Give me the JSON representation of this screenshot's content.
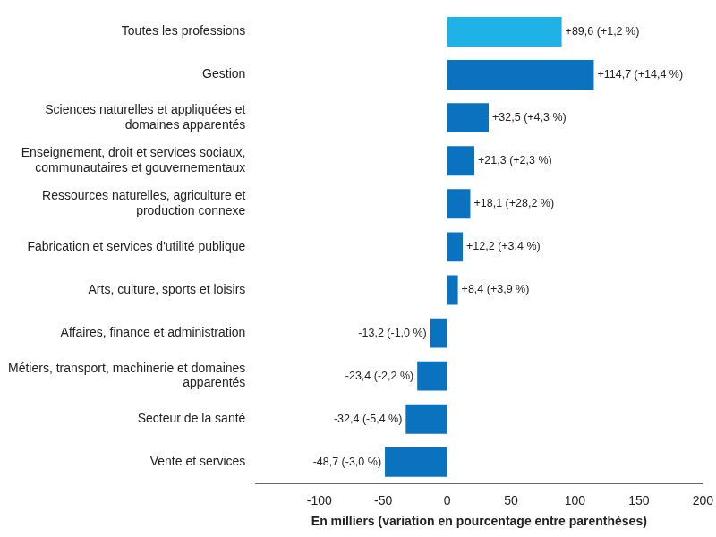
{
  "chart_data": {
    "type": "bar",
    "orientation": "horizontal",
    "xlabel": "En milliers (variation en pourcentage entre parenthèses)",
    "categories": [
      "Toutes les professions",
      "Gestion",
      [
        "Sciences naturelles et appliquées et",
        "domaines apparentés"
      ],
      [
        "Enseignement, droit et services sociaux,",
        "communautaires et gouvernementaux"
      ],
      [
        "Ressources naturelles, agriculture et",
        "production connexe"
      ],
      "Fabrication et services d'utilité publique",
      "Arts, culture, sports et loisirs",
      "Affaires, finance et administration",
      [
        "Métiers, transport, machinerie et domaines",
        "apparentés"
      ],
      "Secteur de la santé",
      "Vente et services"
    ],
    "values": [
      89.6,
      114.7,
      32.5,
      21.3,
      18.1,
      12.2,
      8.4,
      -13.2,
      -23.4,
      -32.4,
      -48.7
    ],
    "value_labels": [
      "+89,6 (+1,2 %)",
      "+114,7 (+14,4 %)",
      "+32,5 (+4,3 %)",
      "+21,3 (+2,3 %)",
      "+18,1 (+28,2 %)",
      "+12,2 (+3,4 %)",
      "+8,4 (+3,9 %)",
      "-13,2 (-1,0 %)",
      "-23,4 (-2,2 %)",
      "-32,4 (-5,4 %)",
      "-48,7 (-3,0 %)"
    ],
    "colors": [
      "#1fb2e6",
      "#0b72bf",
      "#0b72bf",
      "#0b72bf",
      "#0b72bf",
      "#0b72bf",
      "#0b72bf",
      "#0b72bf",
      "#0b72bf",
      "#0b72bf",
      "#0b72bf"
    ],
    "xlim": [
      -150,
      200
    ],
    "xticks": [
      -100,
      -50,
      0,
      50,
      100,
      150,
      200
    ],
    "grid": false,
    "data_labels": true
  }
}
